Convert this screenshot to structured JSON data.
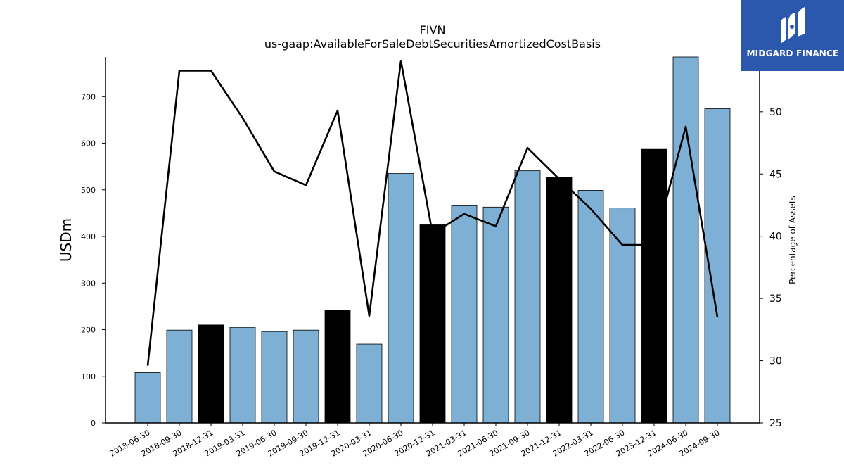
{
  "chart_data": {
    "type": "bar+line",
    "title": "FIVN",
    "subtitle": "us-gaap:AvailableForSaleDebtSecuritiesAmortizedCostBasis",
    "ylabel": "USDm",
    "y2label": "Percentage of Assets",
    "ylim": [
      0,
      785
    ],
    "y2lim": [
      25,
      54.4
    ],
    "yticks": [
      0,
      100,
      200,
      300,
      400,
      500,
      600,
      700
    ],
    "y2ticks": [
      25,
      30,
      35,
      40,
      45,
      50
    ],
    "categories": [
      "2018-06-30",
      "2018-09-30",
      "2018-12-31",
      "2019-03-31",
      "2019-06-30",
      "2019-09-30",
      "2019-12-31",
      "2020-03-31",
      "2020-06-30",
      "2020-12-31",
      "2021-03-31",
      "2021-06-30",
      "2021-09-30",
      "2021-12-31",
      "2022-03-31",
      "2022-06-30",
      "2023-12-31",
      "2024-06-30",
      "2024-09-30"
    ],
    "series": [
      {
        "type": "bar",
        "values": [
          108,
          199,
          210,
          205,
          196,
          199,
          242,
          169,
          535,
          425,
          466,
          463,
          541,
          527,
          499,
          461,
          587,
          790,
          674
        ],
        "highlight": [
          false,
          false,
          true,
          false,
          false,
          false,
          true,
          false,
          false,
          true,
          false,
          false,
          false,
          true,
          false,
          false,
          true,
          false,
          false
        ]
      },
      {
        "type": "line",
        "axis": "right",
        "values": [
          29.6,
          53.3,
          53.3,
          49.5,
          45.2,
          44.1,
          50.1,
          33.6,
          54.1,
          40.2,
          41.8,
          40.8,
          47.1,
          44.6,
          42.2,
          39.3,
          39.3,
          48.8,
          33.5
        ]
      }
    ],
    "colors": {
      "bar": "#7eb0d5",
      "bar_highlight": "#000000",
      "line": "#000000"
    },
    "legend": "none",
    "grid": false
  },
  "logo": {
    "text": "MIDGARD FINANCE",
    "icon": "midgard-logo-icon",
    "color": "#2b58ad"
  }
}
